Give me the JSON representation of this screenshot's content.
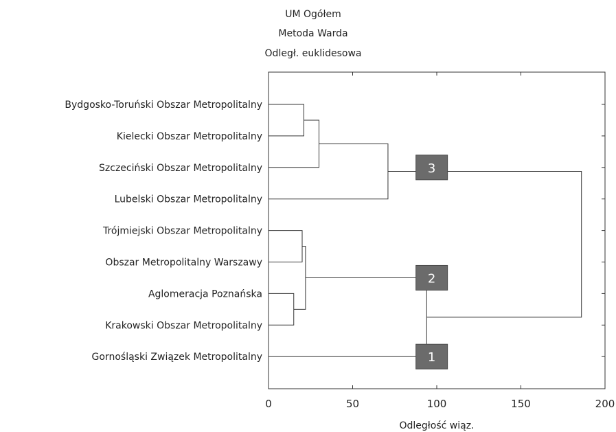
{
  "chart_data": {
    "type": "dendrogram",
    "title_lines": [
      "UM Ogółem",
      "Metoda Warda",
      "Odległ. euklidesowa"
    ],
    "xlabel": "Odległość wiąz.",
    "xlim": [
      0,
      200
    ],
    "x_ticks": [
      0,
      50,
      100,
      150,
      200
    ],
    "leaves": [
      "Bydgosko-Toruński Obszar Metropolitalny",
      "Kielecki Obszar Metropolitalny",
      "Szczeciński Obszar Metropolitalny",
      "Lubelski Obszar Metropolitalny",
      "Trójmiejski Obszar Metropolitalny",
      "Obszar Metropolitalny Warszawy",
      "Aglomeracja Poznańska",
      "Krakowski Obszar Metropolitalny",
      "Gornośląski Związek Metropolitalny"
    ],
    "merges": [
      {
        "a": "L0",
        "b": "L1",
        "height": 21
      },
      {
        "a": "M0",
        "b": "L2",
        "height": 30
      },
      {
        "a": "M1",
        "b": "L3",
        "height": 71
      },
      {
        "a": "L4",
        "b": "L5",
        "height": 20
      },
      {
        "a": "L6",
        "b": "L7",
        "height": 15
      },
      {
        "a": "M3",
        "b": "M4",
        "height": 22
      },
      {
        "a": "M5",
        "b": "L8",
        "height": 94
      },
      {
        "a": "M2",
        "b": "M6",
        "height": 186
      }
    ],
    "cluster_badges": [
      {
        "label": "3",
        "x": 97,
        "row": 2
      },
      {
        "label": "2",
        "x": 97,
        "row": 5.5
      },
      {
        "label": "1",
        "x": 97,
        "row": 8
      }
    ],
    "colors": {
      "line": "#333333",
      "badge": "#6b6b6b",
      "badge_text": "#ffffff"
    }
  }
}
